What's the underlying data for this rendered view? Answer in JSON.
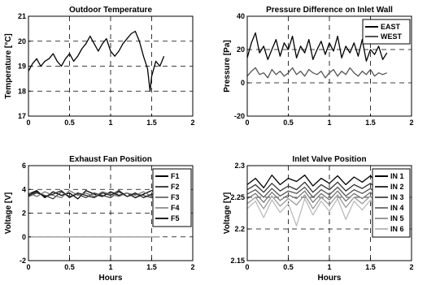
{
  "chart_data": [
    {
      "type": "line",
      "title": "Outdoor Temperature",
      "xlabel": "",
      "ylabel": "Temperature [°C]",
      "xlim": [
        0,
        2
      ],
      "ylim": [
        17,
        21
      ],
      "xticks": [
        0,
        0.5,
        1,
        1.5,
        2
      ],
      "yticks": [
        17,
        18,
        19,
        20,
        21
      ],
      "grid": "dashed",
      "legend": null,
      "series": [
        {
          "color": "#000000",
          "x": [
            0,
            0.05,
            0.1,
            0.15,
            0.2,
            0.25,
            0.3,
            0.35,
            0.4,
            0.45,
            0.5,
            0.55,
            0.6,
            0.65,
            0.7,
            0.75,
            0.8,
            0.85,
            0.9,
            0.95,
            1.0,
            1.05,
            1.1,
            1.15,
            1.2,
            1.25,
            1.3,
            1.35,
            1.4,
            1.45,
            1.48,
            1.5,
            1.55,
            1.6,
            1.65
          ],
          "y": [
            18.8,
            19.1,
            19.3,
            19.0,
            19.2,
            19.3,
            19.5,
            19.2,
            19.0,
            19.3,
            19.5,
            19.2,
            19.4,
            19.7,
            19.9,
            20.2,
            19.9,
            19.6,
            19.9,
            20.1,
            19.6,
            19.4,
            19.6,
            19.9,
            20.1,
            20.3,
            20.4,
            20.0,
            19.4,
            18.9,
            18.0,
            18.6,
            19.2,
            19.0,
            19.4
          ]
        }
      ]
    },
    {
      "type": "line",
      "title": "Pressure Difference on Inlet Wall",
      "xlabel": "",
      "ylabel": "Pressure [Pa]",
      "xlim": [
        0,
        2
      ],
      "ylim": [
        -20,
        40
      ],
      "xticks": [
        0,
        0.5,
        1,
        1.5,
        2
      ],
      "yticks": [
        -20,
        0,
        20,
        40
      ],
      "grid": "dashed",
      "legend": "top-right",
      "series": [
        {
          "name": "EAST",
          "color": "#000000",
          "x": [
            0,
            0.05,
            0.1,
            0.15,
            0.2,
            0.25,
            0.3,
            0.35,
            0.4,
            0.45,
            0.5,
            0.55,
            0.6,
            0.65,
            0.7,
            0.75,
            0.8,
            0.85,
            0.9,
            0.95,
            1.0,
            1.05,
            1.1,
            1.15,
            1.2,
            1.25,
            1.3,
            1.35,
            1.4,
            1.45,
            1.5,
            1.55,
            1.6,
            1.65,
            1.7
          ],
          "y": [
            15,
            24,
            30,
            18,
            22,
            14,
            20,
            26,
            16,
            24,
            20,
            28,
            15,
            22,
            18,
            26,
            14,
            20,
            25,
            17,
            24,
            19,
            28,
            15,
            22,
            18,
            24,
            16,
            26,
            13,
            20,
            17,
            22,
            14,
            18
          ]
        },
        {
          "name": "WEST",
          "color": "#555555",
          "x": [
            0,
            0.05,
            0.1,
            0.15,
            0.2,
            0.25,
            0.3,
            0.35,
            0.4,
            0.45,
            0.5,
            0.55,
            0.6,
            0.65,
            0.7,
            0.75,
            0.8,
            0.85,
            0.9,
            0.95,
            1.0,
            1.05,
            1.1,
            1.15,
            1.2,
            1.25,
            1.3,
            1.35,
            1.4,
            1.45,
            1.5,
            1.55,
            1.6,
            1.65,
            1.7
          ],
          "y": [
            4,
            7,
            9,
            5,
            6,
            3,
            8,
            5,
            7,
            4,
            6,
            9,
            5,
            7,
            4,
            8,
            6,
            5,
            7,
            3,
            6,
            8,
            4,
            7,
            5,
            9,
            6,
            4,
            7,
            5,
            8,
            4,
            6,
            5,
            6
          ]
        }
      ]
    },
    {
      "type": "line",
      "title": "Exhaust Fan Position",
      "xlabel": "Hours",
      "ylabel": "Voltage [V]",
      "xlim": [
        0,
        2
      ],
      "ylim": [
        -2,
        6
      ],
      "xticks": [
        0,
        0.5,
        1,
        1.5,
        2
      ],
      "yticks": [
        -2,
        0,
        2,
        4,
        6
      ],
      "grid": "dashed",
      "legend": "right",
      "series": [
        {
          "name": "F1",
          "color": "#000000",
          "x": [
            0,
            0.1,
            0.2,
            0.3,
            0.4,
            0.5,
            0.6,
            0.7,
            0.8,
            0.9,
            1.0,
            1.1,
            1.2,
            1.3,
            1.4,
            1.5,
            1.6
          ],
          "y": [
            3.6,
            3.9,
            3.3,
            3.8,
            3.5,
            3.7,
            3.2,
            3.9,
            3.6,
            3.4,
            3.8,
            3.5,
            3.7,
            3.3,
            3.6,
            3.9,
            3.6
          ]
        },
        {
          "name": "F2",
          "color": "#444444",
          "x": [
            0,
            0.1,
            0.2,
            0.3,
            0.4,
            0.5,
            0.6,
            0.7,
            0.8,
            0.9,
            1.0,
            1.1,
            1.2,
            1.3,
            1.4,
            1.5,
            1.6
          ],
          "y": [
            3.4,
            3.7,
            3.5,
            3.2,
            3.8,
            3.4,
            3.6,
            3.3,
            3.7,
            3.5,
            3.3,
            3.8,
            3.4,
            3.6,
            3.5,
            3.3,
            3.5
          ]
        },
        {
          "name": "F3",
          "color": "#777777",
          "x": [
            0,
            0.1,
            0.2,
            0.3,
            0.4,
            0.5,
            0.6,
            0.7,
            0.8,
            0.9,
            1.0,
            1.1,
            1.2,
            1.3,
            1.4,
            1.5,
            1.6
          ],
          "y": [
            3.7,
            3.4,
            3.8,
            3.5,
            3.3,
            3.9,
            3.5,
            3.7,
            3.4,
            3.8,
            3.6,
            3.4,
            3.7,
            3.5,
            3.8,
            3.4,
            3.6
          ]
        },
        {
          "name": "F4",
          "color": "#999999",
          "x": [
            0,
            0.1,
            0.2,
            0.3,
            0.4,
            0.5,
            0.6,
            0.7,
            0.8,
            0.9,
            1.0,
            1.1,
            1.2,
            1.3,
            1.4,
            1.5,
            1.6
          ],
          "y": [
            0,
            0,
            0,
            0,
            0,
            0,
            0,
            0,
            0,
            0,
            0,
            0,
            0,
            0,
            0,
            0,
            0
          ]
        },
        {
          "name": "F5",
          "color": "#222222",
          "x": [
            0,
            0.1,
            0.2,
            0.3,
            0.4,
            0.5,
            0.6,
            0.7,
            0.8,
            0.9,
            1.0,
            1.1,
            1.2,
            1.3,
            1.4,
            1.5,
            1.6
          ],
          "y": [
            3.5,
            3.8,
            3.4,
            3.6,
            3.9,
            3.3,
            3.7,
            3.5,
            3.3,
            3.7,
            3.5,
            3.9,
            3.4,
            3.7,
            3.3,
            3.6,
            3.4
          ]
        }
      ]
    },
    {
      "type": "line",
      "title": "Inlet Valve Position",
      "xlabel": "Hours",
      "ylabel": "Voltage [V]",
      "xlim": [
        0,
        2
      ],
      "ylim": [
        2.15,
        2.3
      ],
      "xticks": [
        0,
        0.5,
        1,
        1.5,
        2
      ],
      "yticks": [
        2.15,
        2.2,
        2.25,
        2.3
      ],
      "grid": "dashed",
      "legend": "right",
      "series": [
        {
          "name": "IN 1",
          "color": "#000000",
          "x": [
            0,
            0.1,
            0.2,
            0.3,
            0.4,
            0.5,
            0.6,
            0.7,
            0.8,
            0.9,
            1.0,
            1.1,
            1.2,
            1.3,
            1.4,
            1.5,
            1.6,
            1.7
          ],
          "y": [
            2.27,
            2.28,
            2.265,
            2.285,
            2.27,
            2.28,
            2.275,
            2.285,
            2.268,
            2.28,
            2.272,
            2.284,
            2.27,
            2.282,
            2.274,
            2.284,
            2.27,
            2.278
          ]
        },
        {
          "name": "IN 2",
          "color": "#333333",
          "x": [
            0,
            0.1,
            0.2,
            0.3,
            0.4,
            0.5,
            0.6,
            0.7,
            0.8,
            0.9,
            1.0,
            1.1,
            1.2,
            1.3,
            1.4,
            1.5,
            1.6,
            1.7
          ],
          "y": [
            2.262,
            2.27,
            2.258,
            2.272,
            2.26,
            2.268,
            2.262,
            2.274,
            2.258,
            2.27,
            2.262,
            2.274,
            2.26,
            2.27,
            2.264,
            2.272,
            2.26,
            2.266
          ]
        },
        {
          "name": "IN 3",
          "color": "#555555",
          "x": [
            0,
            0.1,
            0.2,
            0.3,
            0.4,
            0.5,
            0.6,
            0.7,
            0.8,
            0.9,
            1.0,
            1.1,
            1.2,
            1.3,
            1.4,
            1.5,
            1.6,
            1.7
          ],
          "y": [
            2.255,
            2.262,
            2.25,
            2.264,
            2.252,
            2.26,
            2.256,
            2.266,
            2.25,
            2.262,
            2.254,
            2.266,
            2.252,
            2.262,
            2.256,
            2.264,
            2.252,
            2.258
          ]
        },
        {
          "name": "IN 4",
          "color": "#777777",
          "x": [
            0,
            0.1,
            0.2,
            0.3,
            0.4,
            0.5,
            0.6,
            0.7,
            0.8,
            0.9,
            1.0,
            1.1,
            1.2,
            1.3,
            1.4,
            1.5,
            1.6,
            1.7
          ],
          "y": [
            2.248,
            2.256,
            2.242,
            2.258,
            2.245,
            2.254,
            2.248,
            2.26,
            2.242,
            2.256,
            2.246,
            2.26,
            2.244,
            2.256,
            2.248,
            2.258,
            2.244,
            2.25
          ]
        },
        {
          "name": "IN 5",
          "color": "#999999",
          "x": [
            0,
            0.1,
            0.2,
            0.3,
            0.4,
            0.5,
            0.6,
            0.7,
            0.8,
            0.9,
            1.0,
            1.1,
            1.2,
            1.3,
            1.4,
            1.5,
            1.6,
            1.7
          ],
          "y": [
            2.24,
            2.25,
            2.232,
            2.252,
            2.236,
            2.248,
            2.238,
            2.254,
            2.232,
            2.25,
            2.238,
            2.254,
            2.234,
            2.25,
            2.24,
            2.252,
            2.236,
            2.244
          ]
        },
        {
          "name": "IN 6",
          "color": "#bbbbbb",
          "x": [
            0,
            0.1,
            0.2,
            0.3,
            0.4,
            0.5,
            0.6,
            0.7,
            0.8,
            0.9,
            1.0,
            1.1,
            1.2,
            1.3,
            1.4,
            1.5,
            1.6,
            1.7
          ],
          "y": [
            2.232,
            2.244,
            2.218,
            2.246,
            2.226,
            2.24,
            2.205,
            2.248,
            2.222,
            2.244,
            2.228,
            2.248,
            2.215,
            2.244,
            2.23,
            2.246,
            2.2,
            2.236
          ]
        }
      ]
    }
  ]
}
